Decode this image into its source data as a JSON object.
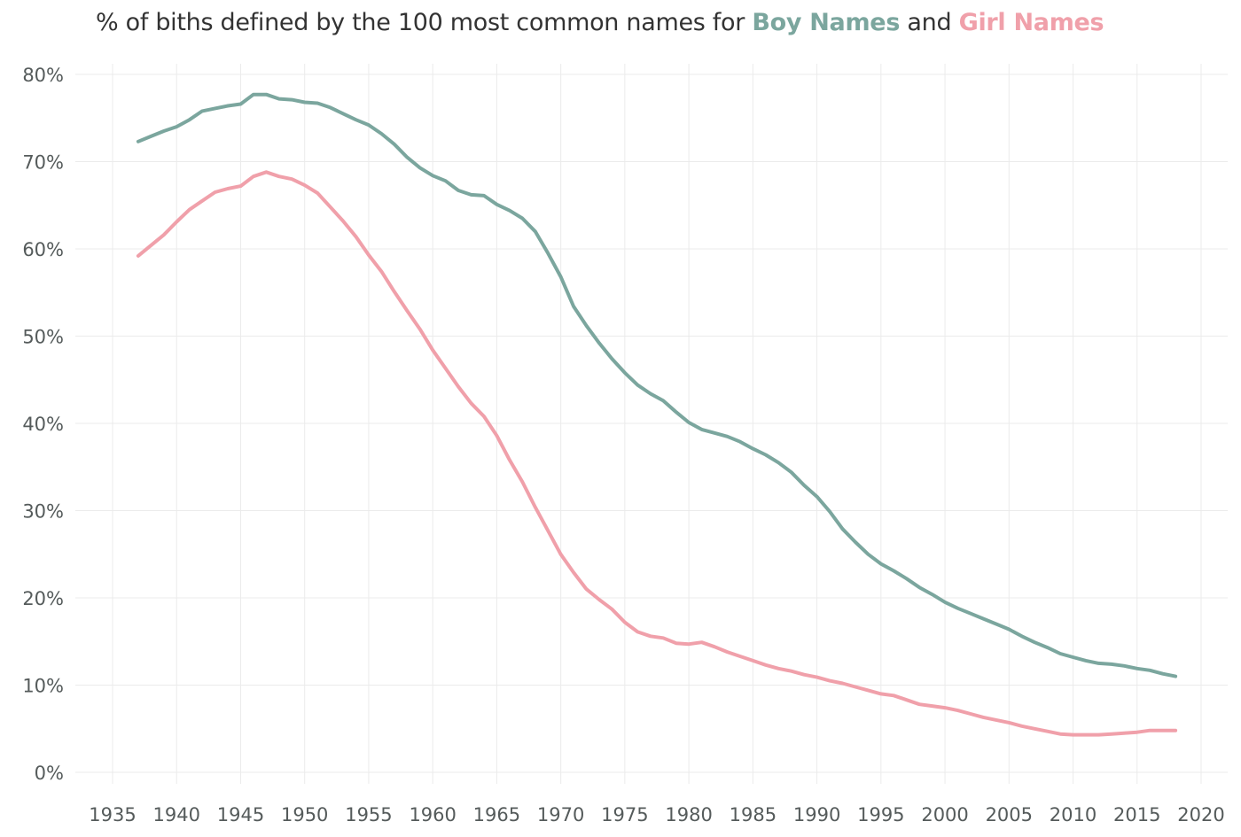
{
  "title": {
    "prefix": "% of biths defined by the 100 most common names for",
    "boy_label": "Boy Names",
    "and": "and",
    "girl_label": "Girl Names"
  },
  "colors": {
    "boy": "#7ba69e",
    "girl": "#f0a0aa",
    "grid": "#ebebeb",
    "text": "#555b5b"
  },
  "chart_data": {
    "type": "line",
    "title": "% of biths defined by the 100 most common names for Boy Names and Girl Names",
    "xlabel": "",
    "ylabel": "",
    "xlim": [
      1933,
      2022
    ],
    "ylim": [
      0,
      80
    ],
    "grid": true,
    "legend": "in title",
    "x_ticks": [
      "1935",
      "1940",
      "1945",
      "1950",
      "1955",
      "1960",
      "1965",
      "1970",
      "1975",
      "1980",
      "1985",
      "1990",
      "1995",
      "2000",
      "2005",
      "2010",
      "2015",
      "2020"
    ],
    "y_ticks": [
      "0%",
      "10%",
      "20%",
      "30%",
      "40%",
      "50%",
      "60%",
      "70%",
      "80%"
    ],
    "x": [
      1937,
      1938,
      1939,
      1940,
      1941,
      1942,
      1943,
      1944,
      1945,
      1946,
      1947,
      1948,
      1949,
      1950,
      1951,
      1952,
      1953,
      1954,
      1955,
      1956,
      1957,
      1958,
      1959,
      1960,
      1961,
      1962,
      1963,
      1964,
      1965,
      1966,
      1967,
      1968,
      1969,
      1970,
      1971,
      1972,
      1973,
      1974,
      1975,
      1976,
      1977,
      1978,
      1979,
      1980,
      1981,
      1982,
      1983,
      1984,
      1985,
      1986,
      1987,
      1988,
      1989,
      1990,
      1991,
      1992,
      1993,
      1994,
      1995,
      1996,
      1997,
      1998,
      1999,
      2000,
      2001,
      2002,
      2003,
      2004,
      2005,
      2006,
      2007,
      2008,
      2009,
      2010,
      2011,
      2012,
      2013,
      2014,
      2015,
      2016,
      2017,
      2018
    ],
    "series": [
      {
        "name": "Boy Names",
        "color": "#7ba69e",
        "values": [
          72.3,
          72.9,
          73.5,
          74.0,
          74.8,
          75.8,
          76.1,
          76.4,
          76.6,
          77.7,
          77.7,
          77.2,
          77.1,
          76.8,
          76.7,
          76.2,
          75.5,
          74.8,
          74.2,
          73.2,
          72.0,
          70.5,
          69.3,
          68.4,
          67.8,
          66.7,
          66.2,
          66.1,
          65.1,
          64.4,
          63.5,
          62.0,
          59.5,
          56.8,
          53.4,
          51.2,
          49.2,
          47.4,
          45.8,
          44.4,
          43.4,
          42.6,
          41.3,
          40.1,
          39.3,
          38.9,
          38.5,
          37.9,
          37.1,
          36.4,
          35.5,
          34.4,
          32.9,
          31.6,
          29.9,
          27.9,
          26.4,
          25.0,
          23.9,
          23.1,
          22.2,
          21.2,
          20.4,
          19.5,
          18.8,
          18.2,
          17.6,
          17.0,
          16.4,
          15.6,
          14.9,
          14.3,
          13.6,
          13.2,
          12.8,
          12.5,
          12.4,
          12.2,
          11.9,
          11.7,
          11.3,
          11.0
        ]
      },
      {
        "name": "Girl Names",
        "color": "#f0a0aa",
        "values": [
          59.2,
          60.4,
          61.6,
          63.1,
          64.5,
          65.5,
          66.5,
          66.9,
          67.2,
          68.3,
          68.8,
          68.3,
          68.0,
          67.3,
          66.4,
          64.8,
          63.2,
          61.4,
          59.3,
          57.4,
          55.1,
          52.9,
          50.8,
          48.4,
          46.3,
          44.2,
          42.3,
          40.8,
          38.6,
          35.8,
          33.3,
          30.4,
          27.7,
          25.0,
          22.9,
          21.0,
          19.8,
          18.7,
          17.2,
          16.1,
          15.6,
          15.4,
          14.8,
          14.7,
          14.9,
          14.4,
          13.8,
          13.3,
          12.8,
          12.3,
          11.9,
          11.6,
          11.2,
          10.9,
          10.5,
          10.2,
          9.8,
          9.4,
          9.0,
          8.8,
          8.3,
          7.8,
          7.6,
          7.4,
          7.1,
          6.7,
          6.3,
          6.0,
          5.7,
          5.3,
          5.0,
          4.7,
          4.4,
          4.3,
          4.3,
          4.3,
          4.4,
          4.5,
          4.6,
          4.8,
          4.8,
          4.8
        ]
      }
    ]
  }
}
